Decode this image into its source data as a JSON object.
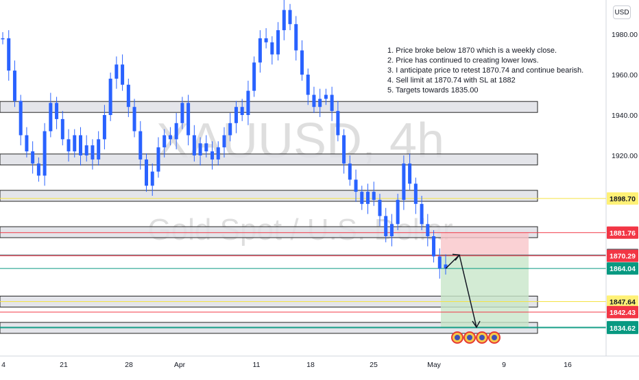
{
  "chart_data": {
    "type": "candlestick",
    "symbol_watermark": "XAUUSD, 4h",
    "subtitle_watermark": "Gold Spot / U.S. Dollar",
    "currency": "USD",
    "y_ticks": [
      1980.0,
      1960.0,
      1940.0,
      1920.0
    ],
    "ylim": [
      1824,
      1994
    ],
    "x_tick_labels": [
      "4",
      "21",
      "28",
      "Apr",
      "11",
      "18",
      "25",
      "May",
      "9",
      "16"
    ],
    "price_path": [
      1978,
      1962,
      1947,
      1930,
      1922,
      1916,
      1910,
      1932,
      1946,
      1938,
      1928,
      1922,
      1930,
      1920,
      1925,
      1918,
      1928,
      1940,
      1958,
      1965,
      1955,
      1944,
      1932,
      1918,
      1905,
      1912,
      1924,
      1930,
      1928,
      1936,
      1946,
      1930,
      1920,
      1926,
      1922,
      1918,
      1924,
      1930,
      1936,
      1944,
      1940,
      1952,
      1966,
      1978,
      1976,
      1970,
      1982,
      1992,
      1985,
      1972,
      1960,
      1950,
      1944,
      1948,
      1950,
      1942,
      1930,
      1916,
      1908,
      1902,
      1896,
      1902,
      1898,
      1890,
      1880,
      1886,
      1898,
      1916,
      1906,
      1896,
      1886,
      1880,
      1870,
      1864,
      1866
    ],
    "zones": [
      1944,
      1918,
      1900,
      1882,
      1847.64,
      1834.62
    ],
    "notes": [
      "1. Price broke below 1870 which is a weekly close.",
      "2. Price has continued to creating lower lows.",
      "3. I anticipate price to retest 1870.74 and continue bearish.",
      "4. Sell limit at 1870.74 with SL at 1882",
      "5. Targets towards 1835.00"
    ],
    "position": {
      "side": "short",
      "entry": 1870.74,
      "stop": 1881.76,
      "target": 1835.0
    },
    "projection": [
      [
        1864,
        1870.74
      ],
      [
        1870.74,
        1834.94
      ]
    ],
    "levels": [
      {
        "label": "1898.70",
        "value": 1898.7,
        "line_color": "#f5e342",
        "badge_color": "#fff176",
        "text": "dark"
      },
      {
        "label": "1881.76",
        "value": 1881.76,
        "line_color": "#f23645",
        "badge_color": "#f23645",
        "text": "light"
      },
      {
        "label": "1870.74",
        "value": 1870.74,
        "line_color": "#5d606b",
        "badge_color": "#5d606b",
        "text": "light"
      },
      {
        "label": "1870.29",
        "value": 1870.29,
        "line_color": "#f23645",
        "badge_color": "#f23645",
        "text": "light"
      },
      {
        "label": "1864.04",
        "value": 1864.04,
        "line_color": "#089981",
        "badge_color": "#089981",
        "text": "light"
      },
      {
        "label": "1847.64",
        "value": 1847.64,
        "line_color": "#f5e342",
        "badge_color": "#fff176",
        "text": "dark"
      },
      {
        "label": "1842.43",
        "value": 1842.43,
        "line_color": "#f23645",
        "badge_color": "#f23645",
        "text": "light"
      },
      {
        "label": "1834.94",
        "value": 1834.94,
        "line_color": "#089981",
        "badge_color": "#089981",
        "text": "light"
      },
      {
        "label": "1834.62",
        "value": 1834.62,
        "line_color": "#089981",
        "badge_color": "#089981",
        "text": "light"
      }
    ],
    "event_markers": 4,
    "colors": {
      "candle": "#2962ff",
      "zone_fill": "#dfe1e6",
      "stop_fill": "#f9c5c9",
      "target_fill": "#c8e6c9"
    }
  }
}
